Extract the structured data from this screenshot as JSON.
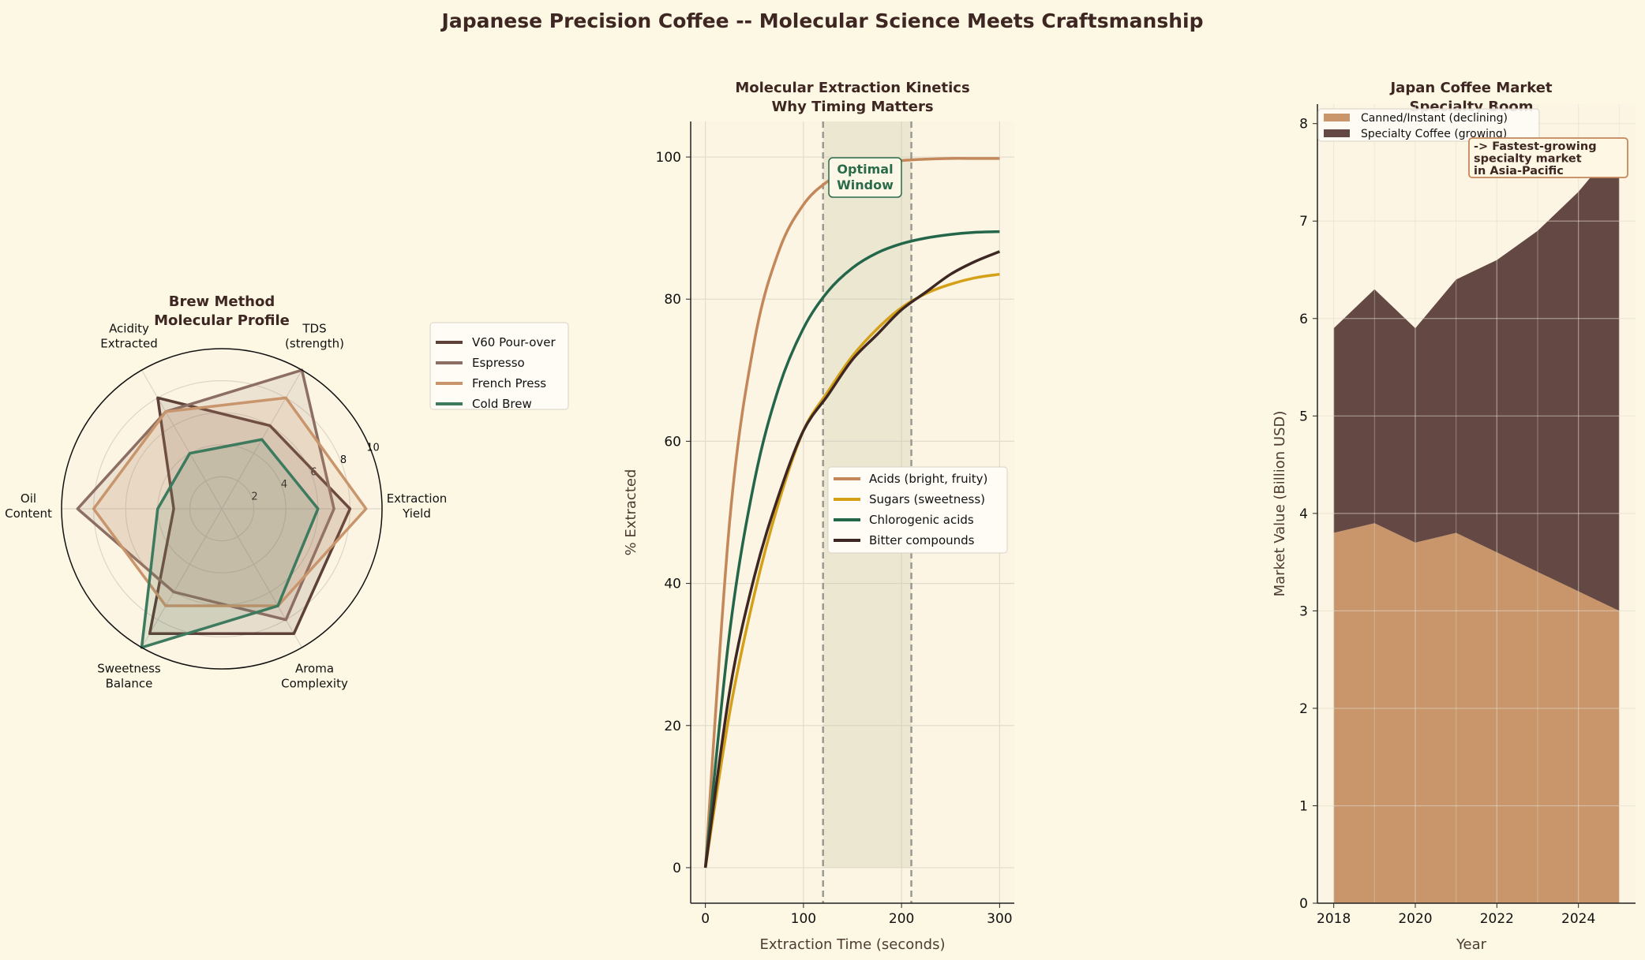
{
  "title": "Japanese Precision Coffee -- Molecular Science Meets Craftsmanship",
  "chart_data": [
    {
      "type": "radar",
      "title": [
        "Brew Method",
        "Molecular Profile"
      ],
      "axes": [
        [
          "Extraction",
          "Yield"
        ],
        [
          "TDS",
          "(strength)"
        ],
        [
          "Acidity",
          "Extracted"
        ],
        [
          "Oil",
          "Content"
        ],
        [
          "Sweetness",
          "Balance"
        ],
        [
          "Aroma",
          "Complexity"
        ]
      ],
      "rlim": [
        0,
        10
      ],
      "rticks": [
        "2",
        "4",
        "6",
        "8",
        "10"
      ],
      "legend_placement": "right",
      "series": [
        {
          "name": "V60 Pour-over",
          "values": [
            8,
            6,
            8,
            3,
            9,
            9
          ],
          "color": "#5d4037"
        },
        {
          "name": "Espresso",
          "values": [
            7,
            10,
            7,
            9,
            6,
            8
          ],
          "color": "#8d6e63"
        },
        {
          "name": "French Press",
          "values": [
            9,
            8,
            7,
            8,
            7,
            7
          ],
          "color": "#c8956c"
        },
        {
          "name": "Cold Brew",
          "values": [
            6,
            5,
            4,
            4,
            10,
            7
          ],
          "color": "#3d7a5e"
        }
      ]
    },
    {
      "type": "line",
      "title": [
        "Molecular Extraction Kinetics",
        "Why Timing Matters"
      ],
      "xlabel": "Extraction Time (seconds)",
      "ylabel": "% Extracted",
      "xlim": [
        -15,
        315
      ],
      "ylim": [
        -5,
        105
      ],
      "xticks": [
        0,
        100,
        200,
        300
      ],
      "yticks": [
        0,
        20,
        40,
        60,
        80,
        100
      ],
      "grid": true,
      "legend_placement": "center-right",
      "x": [
        0,
        25,
        50,
        75,
        100,
        125,
        150,
        175,
        200,
        225,
        250,
        275,
        300
      ],
      "series": [
        {
          "name": "Acids (bright, fruity)",
          "color": "#c4875a",
          "values": [
            0,
            49.1,
            74.1,
            86.8,
            93.3,
            96.6,
            98.3,
            99.1,
            99.5,
            99.7,
            99.8,
            99.8,
            99.8
          ]
        },
        {
          "name": "Sugars (sweetness)",
          "color": "#d4a017",
          "values": [
            0,
            22,
            38.5,
            51.5,
            61.5,
            67,
            72,
            75.8,
            78.8,
            80.8,
            82.1,
            83,
            83.5
          ]
        },
        {
          "name": "Chlorogenic acids",
          "color": "#24664a",
          "values": [
            0,
            33.4,
            54.4,
            67.6,
            75.9,
            81.1,
            84.4,
            86.5,
            87.8,
            88.6,
            89.1,
            89.4,
            89.5
          ]
        },
        {
          "name": "Bitter compounds",
          "color": "#3e2723",
          "values": [
            0,
            25,
            41,
            52.5,
            61.5,
            66.5,
            71.5,
            75,
            78.5,
            81,
            83.5,
            85.3,
            86.7
          ]
        }
      ],
      "shaded_window": [
        120,
        210
      ],
      "annotation": [
        "Optimal",
        "Window"
      ],
      "annotation_color": "#2a6b4a"
    },
    {
      "type": "area",
      "stacked": true,
      "title": [
        "Japan Coffee Market",
        "Specialty Boom"
      ],
      "xlabel": "Year",
      "ylabel": "Market Value (Billion USD)",
      "xlim": [
        2017.6,
        2025.4
      ],
      "ylim": [
        0,
        8.2
      ],
      "xticks": [
        2018,
        2020,
        2022,
        2024
      ],
      "yticks": [
        0,
        1,
        2,
        3,
        4,
        5,
        6,
        7,
        8
      ],
      "grid": true,
      "legend_placement": "top-left",
      "x": [
        2018,
        2019,
        2020,
        2021,
        2022,
        2023,
        2024,
        2025
      ],
      "series": [
        {
          "name": "Canned/Instant (declining)",
          "color": "#c9966b",
          "values": [
            3.8,
            3.9,
            3.7,
            3.8,
            3.6,
            3.4,
            3.2,
            3.0
          ]
        },
        {
          "name": "Specialty Coffee (growing)",
          "color": "#634843",
          "values": [
            2.1,
            2.4,
            2.2,
            2.6,
            3.0,
            3.5,
            4.1,
            4.8
          ]
        }
      ],
      "annotation": [
        "-> Fastest-growing",
        "specialty market",
        "in Asia-Pacific"
      ]
    }
  ]
}
